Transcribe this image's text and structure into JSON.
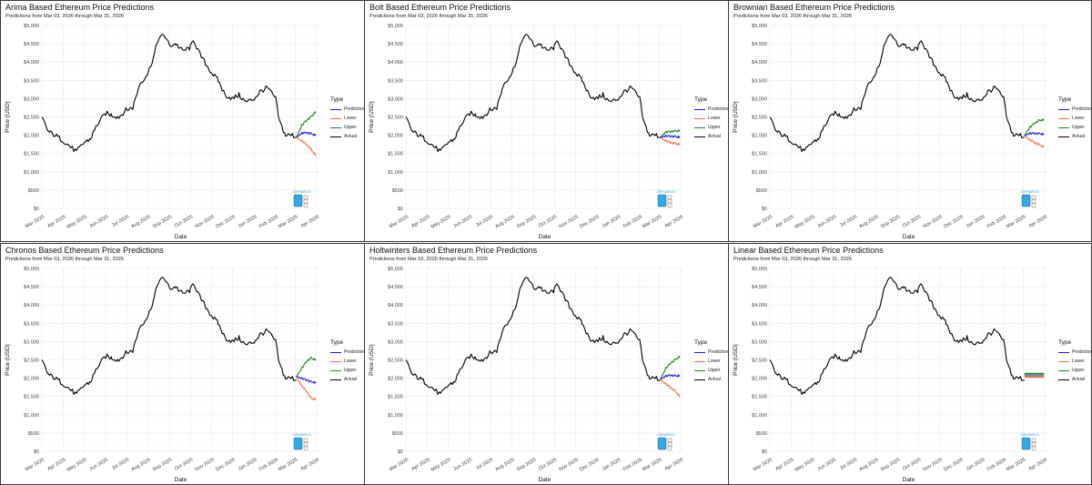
{
  "dashboard": {
    "panels": [
      {
        "title": "Arima Based Ethereum Price Predictions",
        "subtitle": "Predictions from Mar 03, 2026 through Mar 31, 2026"
      },
      {
        "title": "Bolt Based Ethereum Price Predictions",
        "subtitle": "Predictions from Mar 03, 2026 through Mar 31, 2026"
      },
      {
        "title": "Brownian Based Ethereum Price Predictions",
        "subtitle": "Predictions from Mar 03, 2026 through Mar 31, 2026"
      },
      {
        "title": "Chronos Based Ethereum Price Predictions",
        "subtitle": "Predictions from Mar 03, 2026 through Mar 31, 2026"
      },
      {
        "title": "Holtwinters Based Ethereum Price Predictions",
        "subtitle": "Predictions from Mar 03, 2026 through Mar 31, 2026"
      },
      {
        "title": "Linear Based Ethereum Price Predictions",
        "subtitle": "Predictions from Mar 03, 2026 through Mar 31, 2026"
      }
    ],
    "legend_title": "Type",
    "legend_items": [
      {
        "label": "Prediction",
        "color": "#1f1fc8"
      },
      {
        "label": "Lower",
        "color": "#f4704c"
      },
      {
        "label": "Upper",
        "color": "#1f8a1f"
      },
      {
        "label": "Actual",
        "color": "#000000"
      }
    ],
    "y_axis_title": "Price (USD)",
    "x_axis_title": "Date",
    "y_ticks": [
      "$0",
      "$500",
      "$1,000",
      "$1,500",
      "$2,000",
      "$2,500",
      "$3,000",
      "$3,500",
      "$4,000",
      "$4,500",
      "$5,000"
    ],
    "x_ticks": [
      "Mar 2025",
      "Apr 2025",
      "May 2025",
      "Jun 2025",
      "Jul 2025",
      "Aug 2025",
      "Sep 2025",
      "Oct 2025",
      "Nov 2025",
      "Dec 2025",
      "Jan 2026",
      "Feb 2026",
      "Mar 2026",
      "Apr 2026"
    ],
    "logo_text": "DRHARCS"
  },
  "chart_data": [
    {
      "type": "line",
      "model": "Arima",
      "xlabel": "Date",
      "ylabel": "Price (USD)",
      "ylim": [
        0,
        5000
      ],
      "xlim": [
        "2025-03-01",
        "2026-04-05"
      ],
      "legend_position": "right",
      "grid": true,
      "actual": {
        "dates": [
          "2025-03-01",
          "2025-03-10",
          "2025-03-20",
          "2025-04-01",
          "2025-04-10",
          "2025-04-20",
          "2025-05-01",
          "2025-05-10",
          "2025-05-20",
          "2025-06-01",
          "2025-06-10",
          "2025-06-20",
          "2025-07-01",
          "2025-07-10",
          "2025-07-20",
          "2025-08-01",
          "2025-08-10",
          "2025-08-15",
          "2025-08-24",
          "2025-09-01",
          "2025-09-10",
          "2025-09-20",
          "2025-10-01",
          "2025-10-06",
          "2025-10-15",
          "2025-10-25",
          "2025-11-01",
          "2025-11-10",
          "2025-11-20",
          "2025-12-01",
          "2025-12-10",
          "2025-12-20",
          "2026-01-01",
          "2026-01-10",
          "2026-01-20",
          "2026-02-01",
          "2026-02-06",
          "2026-02-15",
          "2026-02-25",
          "2026-03-03"
        ],
        "values": [
          2500,
          2100,
          2000,
          1850,
          1700,
          1550,
          1800,
          1900,
          2300,
          2600,
          2550,
          2500,
          2700,
          2750,
          3400,
          3700,
          4200,
          4600,
          4750,
          4450,
          4500,
          4300,
          4400,
          4600,
          4200,
          3900,
          3700,
          3500,
          3100,
          3000,
          3100,
          2900,
          3000,
          3200,
          3300,
          3000,
          2400,
          2000,
          2000,
          1950
        ]
      },
      "prediction": {
        "dates": [
          "2026-03-03",
          "2026-03-10",
          "2026-03-17",
          "2026-03-24",
          "2026-03-31"
        ],
        "values": [
          1950,
          2050,
          2070,
          2040,
          2000
        ]
      },
      "lower": {
        "dates": [
          "2026-03-03",
          "2026-03-10",
          "2026-03-17",
          "2026-03-24",
          "2026-03-31"
        ],
        "values": [
          1950,
          1850,
          1750,
          1600,
          1450
        ]
      },
      "upper": {
        "dates": [
          "2026-03-03",
          "2026-03-10",
          "2026-03-17",
          "2026-03-24",
          "2026-03-31"
        ],
        "values": [
          1950,
          2250,
          2400,
          2500,
          2650
        ]
      }
    },
    {
      "type": "line",
      "model": "Bolt",
      "xlabel": "Date",
      "ylabel": "Price (USD)",
      "ylim": [
        0,
        5000
      ],
      "xlim": [
        "2025-03-01",
        "2026-04-05"
      ],
      "legend_position": "right",
      "grid": true,
      "actual": {
        "dates": [
          "2025-03-01",
          "2025-03-10",
          "2025-03-20",
          "2025-04-01",
          "2025-04-10",
          "2025-04-20",
          "2025-05-01",
          "2025-05-10",
          "2025-05-20",
          "2025-06-01",
          "2025-06-10",
          "2025-06-20",
          "2025-07-01",
          "2025-07-10",
          "2025-07-20",
          "2025-08-01",
          "2025-08-10",
          "2025-08-15",
          "2025-08-24",
          "2025-09-01",
          "2025-09-10",
          "2025-09-20",
          "2025-10-01",
          "2025-10-06",
          "2025-10-15",
          "2025-10-25",
          "2025-11-01",
          "2025-11-10",
          "2025-11-20",
          "2025-12-01",
          "2025-12-10",
          "2025-12-20",
          "2026-01-01",
          "2026-01-10",
          "2026-01-20",
          "2026-02-01",
          "2026-02-06",
          "2026-02-15",
          "2026-02-25",
          "2026-03-03"
        ],
        "values": [
          2500,
          2100,
          2000,
          1850,
          1700,
          1550,
          1800,
          1900,
          2300,
          2600,
          2550,
          2500,
          2700,
          2750,
          3400,
          3700,
          4200,
          4600,
          4750,
          4450,
          4500,
          4300,
          4400,
          4600,
          4200,
          3900,
          3700,
          3500,
          3100,
          3000,
          3100,
          2900,
          3000,
          3200,
          3300,
          3000,
          2400,
          2000,
          2000,
          1950
        ]
      },
      "prediction": {
        "dates": [
          "2026-03-03",
          "2026-03-10",
          "2026-03-17",
          "2026-03-24",
          "2026-03-31"
        ],
        "values": [
          1950,
          1980,
          1970,
          1960,
          1950
        ]
      },
      "lower": {
        "dates": [
          "2026-03-03",
          "2026-03-10",
          "2026-03-17",
          "2026-03-24",
          "2026-03-31"
        ],
        "values": [
          1950,
          1850,
          1800,
          1770,
          1750
        ]
      },
      "upper": {
        "dates": [
          "2026-03-03",
          "2026-03-10",
          "2026-03-17",
          "2026-03-24",
          "2026-03-31"
        ],
        "values": [
          1950,
          2080,
          2100,
          2110,
          2130
        ]
      }
    },
    {
      "type": "line",
      "model": "Brownian",
      "xlabel": "Date",
      "ylabel": "Price (USD)",
      "ylim": [
        0,
        5000
      ],
      "xlim": [
        "2025-03-01",
        "2026-04-05"
      ],
      "legend_position": "right",
      "grid": true,
      "actual": {
        "dates": [
          "2025-03-01",
          "2025-03-10",
          "2025-03-20",
          "2025-04-01",
          "2025-04-10",
          "2025-04-20",
          "2025-05-01",
          "2025-05-10",
          "2025-05-20",
          "2025-06-01",
          "2025-06-10",
          "2025-06-20",
          "2025-07-01",
          "2025-07-10",
          "2025-07-20",
          "2025-08-01",
          "2025-08-10",
          "2025-08-15",
          "2025-08-24",
          "2025-09-01",
          "2025-09-10",
          "2025-09-20",
          "2025-10-01",
          "2025-10-06",
          "2025-10-15",
          "2025-10-25",
          "2025-11-01",
          "2025-11-10",
          "2025-11-20",
          "2025-12-01",
          "2025-12-10",
          "2025-12-20",
          "2026-01-01",
          "2026-01-10",
          "2026-01-20",
          "2026-02-01",
          "2026-02-06",
          "2026-02-15",
          "2026-02-25",
          "2026-03-03"
        ],
        "values": [
          2500,
          2100,
          2000,
          1850,
          1700,
          1550,
          1800,
          1900,
          2300,
          2600,
          2550,
          2500,
          2700,
          2750,
          3400,
          3700,
          4200,
          4600,
          4750,
          4450,
          4500,
          4300,
          4400,
          4600,
          4200,
          3900,
          3700,
          3500,
          3100,
          3000,
          3100,
          2900,
          3000,
          3200,
          3300,
          3000,
          2400,
          2000,
          2000,
          1950
        ]
      },
      "prediction": {
        "dates": [
          "2026-03-03",
          "2026-03-10",
          "2026-03-17",
          "2026-03-24",
          "2026-03-31"
        ],
        "values": [
          2000,
          2050,
          2050,
          2040,
          2030
        ]
      },
      "lower": {
        "dates": [
          "2026-03-03",
          "2026-03-10",
          "2026-03-17",
          "2026-03-24",
          "2026-03-31"
        ],
        "values": [
          2000,
          1880,
          1800,
          1740,
          1680
        ]
      },
      "upper": {
        "dates": [
          "2026-03-03",
          "2026-03-10",
          "2026-03-17",
          "2026-03-24",
          "2026-03-31"
        ],
        "values": [
          2000,
          2200,
          2320,
          2400,
          2430
        ]
      }
    },
    {
      "type": "line",
      "model": "Chronos",
      "xlabel": "Date",
      "ylabel": "Price (USD)",
      "ylim": [
        0,
        5000
      ],
      "xlim": [
        "2025-03-01",
        "2026-04-05"
      ],
      "legend_position": "right",
      "grid": true,
      "actual": {
        "dates": [
          "2025-03-01",
          "2025-03-10",
          "2025-03-20",
          "2025-04-01",
          "2025-04-10",
          "2025-04-20",
          "2025-05-01",
          "2025-05-10",
          "2025-05-20",
          "2025-06-01",
          "2025-06-10",
          "2025-06-20",
          "2025-07-01",
          "2025-07-10",
          "2025-07-20",
          "2025-08-01",
          "2025-08-10",
          "2025-08-15",
          "2025-08-24",
          "2025-09-01",
          "2025-09-10",
          "2025-09-20",
          "2025-10-01",
          "2025-10-06",
          "2025-10-15",
          "2025-10-25",
          "2025-11-01",
          "2025-11-10",
          "2025-11-20",
          "2025-12-01",
          "2025-12-10",
          "2025-12-20",
          "2026-01-01",
          "2026-01-10",
          "2026-01-20",
          "2026-02-01",
          "2026-02-06",
          "2026-02-15",
          "2026-02-25",
          "2026-03-03"
        ],
        "values": [
          2500,
          2100,
          2000,
          1850,
          1700,
          1550,
          1800,
          1900,
          2300,
          2600,
          2550,
          2500,
          2700,
          2750,
          3400,
          3700,
          4200,
          4600,
          4750,
          4450,
          4500,
          4300,
          4400,
          4600,
          4200,
          3900,
          3700,
          3500,
          3100,
          3000,
          3100,
          2900,
          3000,
          3200,
          3300,
          3000,
          2400,
          2000,
          2000,
          1950
        ]
      },
      "prediction": {
        "dates": [
          "2026-03-03",
          "2026-03-10",
          "2026-03-17",
          "2026-03-24",
          "2026-03-31"
        ],
        "values": [
          2050,
          2000,
          1950,
          1900,
          1880
        ]
      },
      "lower": {
        "dates": [
          "2026-03-03",
          "2026-03-10",
          "2026-03-17",
          "2026-03-24",
          "2026-03-31"
        ],
        "values": [
          2050,
          1800,
          1650,
          1450,
          1420
        ]
      },
      "upper": {
        "dates": [
          "2026-03-03",
          "2026-03-10",
          "2026-03-17",
          "2026-03-24",
          "2026-03-31"
        ],
        "values": [
          2050,
          2250,
          2450,
          2550,
          2500
        ]
      }
    },
    {
      "type": "line",
      "model": "Holtwinters",
      "xlabel": "Date",
      "ylabel": "Price (USD)",
      "ylim": [
        0,
        5000
      ],
      "xlim": [
        "2025-03-01",
        "2026-04-05"
      ],
      "legend_position": "right",
      "grid": true,
      "actual": {
        "dates": [
          "2025-03-01",
          "2025-03-10",
          "2025-03-20",
          "2025-04-01",
          "2025-04-10",
          "2025-04-20",
          "2025-05-01",
          "2025-05-10",
          "2025-05-20",
          "2025-06-01",
          "2025-06-10",
          "2025-06-20",
          "2025-07-01",
          "2025-07-10",
          "2025-07-20",
          "2025-08-01",
          "2025-08-10",
          "2025-08-15",
          "2025-08-24",
          "2025-09-01",
          "2025-09-10",
          "2025-09-20",
          "2025-10-01",
          "2025-10-06",
          "2025-10-15",
          "2025-10-25",
          "2025-11-01",
          "2025-11-10",
          "2025-11-20",
          "2025-12-01",
          "2025-12-10",
          "2025-12-20",
          "2026-01-01",
          "2026-01-10",
          "2026-01-20",
          "2026-02-01",
          "2026-02-06",
          "2026-02-15",
          "2026-02-25",
          "2026-03-03"
        ],
        "values": [
          2500,
          2100,
          2000,
          1850,
          1700,
          1550,
          1800,
          1900,
          2300,
          2600,
          2550,
          2500,
          2700,
          2750,
          3400,
          3700,
          4200,
          4600,
          4750,
          4450,
          4500,
          4300,
          4400,
          4600,
          4200,
          3900,
          3700,
          3500,
          3100,
          3000,
          3100,
          2900,
          3000,
          3200,
          3300,
          3000,
          2400,
          2000,
          2000,
          1950
        ]
      },
      "prediction": {
        "dates": [
          "2026-03-03",
          "2026-03-10",
          "2026-03-17",
          "2026-03-24",
          "2026-03-31"
        ],
        "values": [
          1980,
          2050,
          2080,
          2060,
          2070
        ]
      },
      "lower": {
        "dates": [
          "2026-03-03",
          "2026-03-10",
          "2026-03-17",
          "2026-03-24",
          "2026-03-31"
        ],
        "values": [
          1980,
          1850,
          1750,
          1650,
          1500
        ]
      },
      "upper": {
        "dates": [
          "2026-03-03",
          "2026-03-10",
          "2026-03-17",
          "2026-03-24",
          "2026-03-31"
        ],
        "values": [
          1980,
          2250,
          2400,
          2500,
          2600
        ]
      }
    },
    {
      "type": "line",
      "model": "Linear",
      "xlabel": "Date",
      "ylabel": "Price (USD)",
      "ylim": [
        0,
        5000
      ],
      "xlim": [
        "2025-03-01",
        "2026-04-05"
      ],
      "legend_position": "right",
      "grid": true,
      "actual": {
        "dates": [
          "2025-03-01",
          "2025-03-10",
          "2025-03-20",
          "2025-04-01",
          "2025-04-10",
          "2025-04-20",
          "2025-05-01",
          "2025-05-10",
          "2025-05-20",
          "2025-06-01",
          "2025-06-10",
          "2025-06-20",
          "2025-07-01",
          "2025-07-10",
          "2025-07-20",
          "2025-08-01",
          "2025-08-10",
          "2025-08-15",
          "2025-08-24",
          "2025-09-01",
          "2025-09-10",
          "2025-09-20",
          "2025-10-01",
          "2025-10-06",
          "2025-10-15",
          "2025-10-25",
          "2025-11-01",
          "2025-11-10",
          "2025-11-20",
          "2025-12-01",
          "2025-12-10",
          "2025-12-20",
          "2026-01-01",
          "2026-01-10",
          "2026-01-20",
          "2026-02-01",
          "2026-02-06",
          "2026-02-15",
          "2026-02-25",
          "2026-03-03"
        ],
        "values": [
          2500,
          2100,
          2000,
          1850,
          1700,
          1550,
          1800,
          1900,
          2300,
          2600,
          2550,
          2500,
          2700,
          2750,
          3400,
          3700,
          4200,
          4600,
          4750,
          4450,
          4500,
          4300,
          4400,
          4600,
          4200,
          3900,
          3700,
          3500,
          3100,
          3000,
          3100,
          2900,
          3000,
          3200,
          3300,
          3000,
          2400,
          2000,
          2000,
          1950
        ]
      },
      "prediction": {
        "dates": [
          "2026-03-03",
          "2026-03-10",
          "2026-03-17",
          "2026-03-24",
          "2026-03-31"
        ],
        "values": [
          2080,
          2080,
          2080,
          2080,
          2080
        ]
      },
      "lower": {
        "dates": [
          "2026-03-03",
          "2026-03-10",
          "2026-03-17",
          "2026-03-24",
          "2026-03-31"
        ],
        "values": [
          2040,
          2040,
          2040,
          2040,
          2040
        ]
      },
      "upper": {
        "dates": [
          "2026-03-03",
          "2026-03-10",
          "2026-03-17",
          "2026-03-24",
          "2026-03-31"
        ],
        "values": [
          2120,
          2120,
          2120,
          2120,
          2120
        ]
      }
    }
  ]
}
